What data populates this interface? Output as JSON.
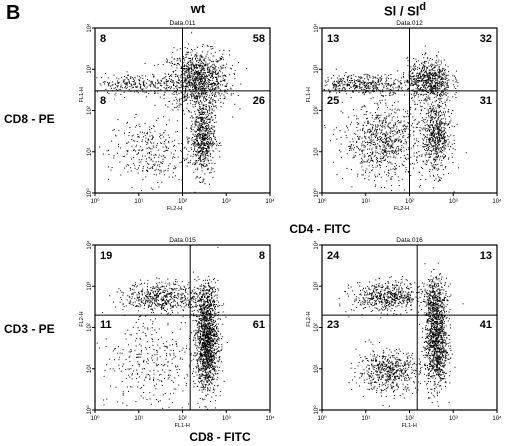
{
  "panel_label": "B",
  "column_titles": [
    "wt",
    "Sl / Sl"
  ],
  "column_title_sup": "d",
  "row_axis_labels": [
    "CD8 - PE",
    "CD3 - PE"
  ],
  "x_axis_labels": [
    "CD4 - FITC",
    "CD8 - FITC"
  ],
  "chart_data": [
    {
      "type": "scatter",
      "title": "Data.011",
      "xlabel": "FL2-H",
      "ylabel": "FL1-H",
      "xscale": "log",
      "yscale": "log",
      "xlim": [
        1,
        10000
      ],
      "ylim": [
        1,
        10000
      ],
      "x_ticks": [
        "10⁰",
        "10¹",
        "10²",
        "10³",
        "10⁴"
      ],
      "y_ticks": [
        "10⁰",
        "10¹",
        "10²",
        "10³",
        "10⁴"
      ],
      "quadrant_gate": {
        "x": 100,
        "y": 300
      },
      "quadrant_percentages": {
        "upper_left": 8,
        "upper_right": 58,
        "lower_left": 8,
        "lower_right": 26
      }
    },
    {
      "type": "scatter",
      "title": "Data.012",
      "xlabel": "FL2-H",
      "ylabel": "FL1-H",
      "xscale": "log",
      "yscale": "log",
      "xlim": [
        1,
        10000
      ],
      "ylim": [
        1,
        10000
      ],
      "x_ticks": [
        "10⁰",
        "10¹",
        "10²",
        "10³",
        "10⁴"
      ],
      "y_ticks": [
        "10⁰",
        "10¹",
        "10²",
        "10³",
        "10⁴"
      ],
      "quadrant_gate": {
        "x": 100,
        "y": 300
      },
      "quadrant_percentages": {
        "upper_left": 13,
        "upper_right": 32,
        "lower_left": 25,
        "lower_right": 31
      }
    },
    {
      "type": "scatter",
      "title": "Data.015",
      "xlabel": "FL1-H",
      "ylabel": "FL2-H",
      "xscale": "log",
      "yscale": "log",
      "xlim": [
        1,
        10000
      ],
      "ylim": [
        1,
        10000
      ],
      "x_ticks": [
        "10⁰",
        "10¹",
        "10²",
        "10³",
        "10⁴"
      ],
      "y_ticks": [
        "10⁰",
        "10¹",
        "10²",
        "10³",
        "10⁴"
      ],
      "quadrant_gate": {
        "x": 150,
        "y": 200
      },
      "quadrant_percentages": {
        "upper_left": 19,
        "upper_right": 8,
        "lower_left": 11,
        "lower_right": 61
      }
    },
    {
      "type": "scatter",
      "title": "Data.016",
      "xlabel": "FL1-H",
      "ylabel": "FL2-H",
      "xscale": "log",
      "yscale": "log",
      "xlim": [
        1,
        10000
      ],
      "ylim": [
        1,
        10000
      ],
      "x_ticks": [
        "10⁰",
        "10¹",
        "10²",
        "10³",
        "10⁴"
      ],
      "y_ticks": [
        "10⁰",
        "10¹",
        "10²",
        "10³",
        "10⁴"
      ],
      "quadrant_gate": {
        "x": 150,
        "y": 200
      },
      "quadrant_percentages": {
        "upper_left": 24,
        "upper_right": 13,
        "lower_left": 23,
        "lower_right": 41
      }
    }
  ]
}
